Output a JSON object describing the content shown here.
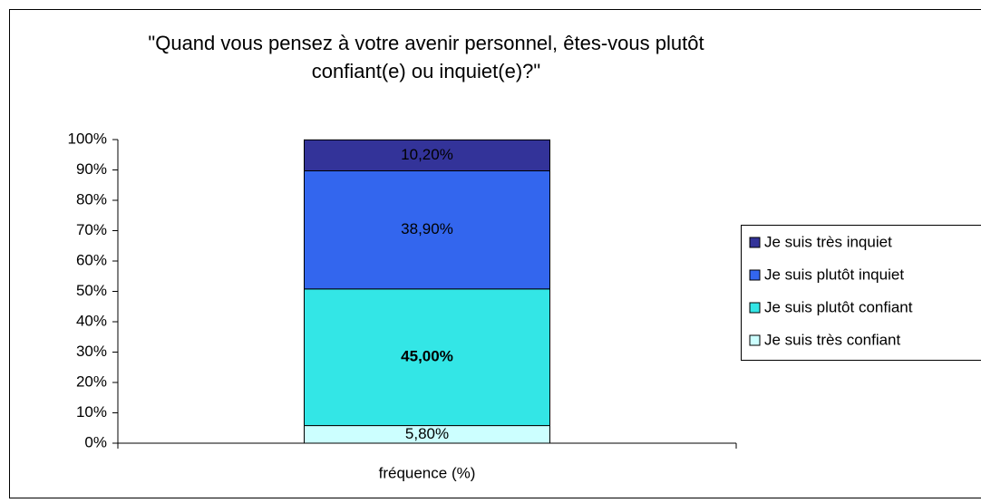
{
  "chart_data": {
    "type": "stacked_bar",
    "title": "\"Quand vous pensez à votre avenir personnel, êtes-vous plutôt confiant(e) ou inquiet(e)?\"",
    "categories": [
      "fréquence (%)"
    ],
    "series": [
      {
        "name": "Je suis très confiant",
        "color": "#ccffff",
        "values": [
          5.8
        ],
        "value_labels": [
          "5,80%"
        ]
      },
      {
        "name": "Je suis plutôt confiant",
        "color": "#33e6e6",
        "values": [
          45.0
        ],
        "value_labels": [
          "45,00%"
        ],
        "bold": true
      },
      {
        "name": "Je suis plutôt inquiet",
        "color": "#3366ee",
        "values": [
          38.9
        ],
        "value_labels": [
          "38,90%"
        ]
      },
      {
        "name": "Je suis très inquiet",
        "color": "#333399",
        "values": [
          10.2
        ],
        "value_labels": [
          "10,20%"
        ]
      }
    ],
    "ylim": [
      0,
      100
    ],
    "yticks": [
      {
        "value": 0,
        "label": "0%"
      },
      {
        "value": 10,
        "label": "10%"
      },
      {
        "value": 20,
        "label": "20%"
      },
      {
        "value": 30,
        "label": "30%"
      },
      {
        "value": 40,
        "label": "40%"
      },
      {
        "value": 50,
        "label": "50%"
      },
      {
        "value": 60,
        "label": "60%"
      },
      {
        "value": 70,
        "label": "70%"
      },
      {
        "value": 80,
        "label": "80%"
      },
      {
        "value": 90,
        "label": "90%"
      },
      {
        "value": 100,
        "label": "100%"
      }
    ],
    "legend": "right"
  }
}
